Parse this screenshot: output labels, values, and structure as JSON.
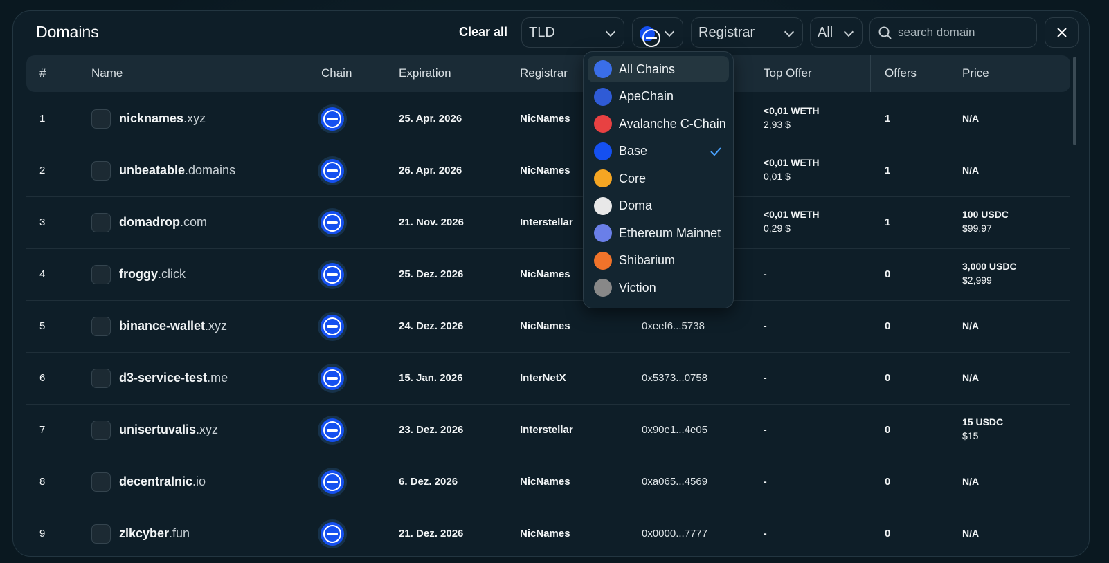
{
  "header": {
    "title": "Domains",
    "clear_all": "Clear all",
    "tld_filter": "TLD",
    "registrar_filter": "Registrar",
    "status_filter": "All",
    "search_placeholder": "search domain"
  },
  "table": {
    "columns": {
      "index": "#",
      "name": "Name",
      "chain": "Chain",
      "expiration": "Expiration",
      "registrar": "Registrar",
      "top_offer": "Top Offer",
      "offers": "Offers",
      "price": "Price"
    },
    "rows": [
      {
        "index": 1,
        "name": "nicknames",
        "tld": ".xyz",
        "expiration": "25. Apr. 2026",
        "registrar": "NicNames",
        "owner": null,
        "top_offer": [
          "<0,01 WETH",
          "2,93 $"
        ],
        "offers": 1,
        "price": [
          "N/A"
        ]
      },
      {
        "index": 2,
        "name": "unbeatable",
        "tld": ".domains",
        "expiration": "26. Apr. 2026",
        "registrar": "NicNames",
        "owner": null,
        "top_offer": [
          "<0,01 WETH",
          "0,01 $"
        ],
        "offers": 1,
        "price": [
          "N/A"
        ]
      },
      {
        "index": 3,
        "name": "domadrop",
        "tld": ".com",
        "expiration": "21. Nov. 2026",
        "registrar": "Interstellar",
        "owner": null,
        "top_offer": [
          "<0,01 WETH",
          "0,29 $"
        ],
        "offers": 1,
        "price": [
          "100 USDC",
          "$99.97"
        ]
      },
      {
        "index": 4,
        "name": "froggy",
        "tld": ".click",
        "expiration": "25. Dez. 2026",
        "registrar": "NicNames",
        "owner": null,
        "top_offer": [
          "-"
        ],
        "offers": 0,
        "price": [
          "3,000 USDC",
          "$2,999"
        ]
      },
      {
        "index": 5,
        "name": "binance-wallet",
        "tld": ".xyz",
        "expiration": "24. Dez. 2026",
        "registrar": "NicNames",
        "owner": "0xeef6...5738",
        "top_offer": [
          "-"
        ],
        "offers": 0,
        "price": [
          "N/A"
        ]
      },
      {
        "index": 6,
        "name": "d3-service-test",
        "tld": ".me",
        "expiration": "15. Jan. 2026",
        "registrar": "InterNetX",
        "owner": "0x5373...0758",
        "top_offer": [
          "-"
        ],
        "offers": 0,
        "price": [
          "N/A"
        ]
      },
      {
        "index": 7,
        "name": "unisertuvalis",
        "tld": ".xyz",
        "expiration": "23. Dez. 2026",
        "registrar": "Interstellar",
        "owner": "0x90e1...4e05",
        "top_offer": [
          "-"
        ],
        "offers": 0,
        "price": [
          "15 USDC",
          "$15"
        ]
      },
      {
        "index": 8,
        "name": "decentralnic",
        "tld": ".io",
        "expiration": "6. Dez. 2026",
        "registrar": "NicNames",
        "owner": "0xa065...4569",
        "top_offer": [
          "-"
        ],
        "offers": 0,
        "price": [
          "N/A"
        ]
      },
      {
        "index": 9,
        "name": "zlkcyber",
        "tld": ".fun",
        "expiration": "21. Dez. 2026",
        "registrar": "NicNames",
        "owner": "0x0000...7777",
        "top_offer": [
          "-"
        ],
        "offers": 0,
        "price": [
          "N/A"
        ]
      }
    ]
  },
  "chain_dropdown": {
    "items": [
      "All Chains",
      "ApeChain",
      "Avalanche C-Chain",
      "Base",
      "Core",
      "Doma",
      "Ethereum Mainnet",
      "Shibarium",
      "Viction"
    ],
    "selected": "Base",
    "hovered": "All Chains"
  }
}
